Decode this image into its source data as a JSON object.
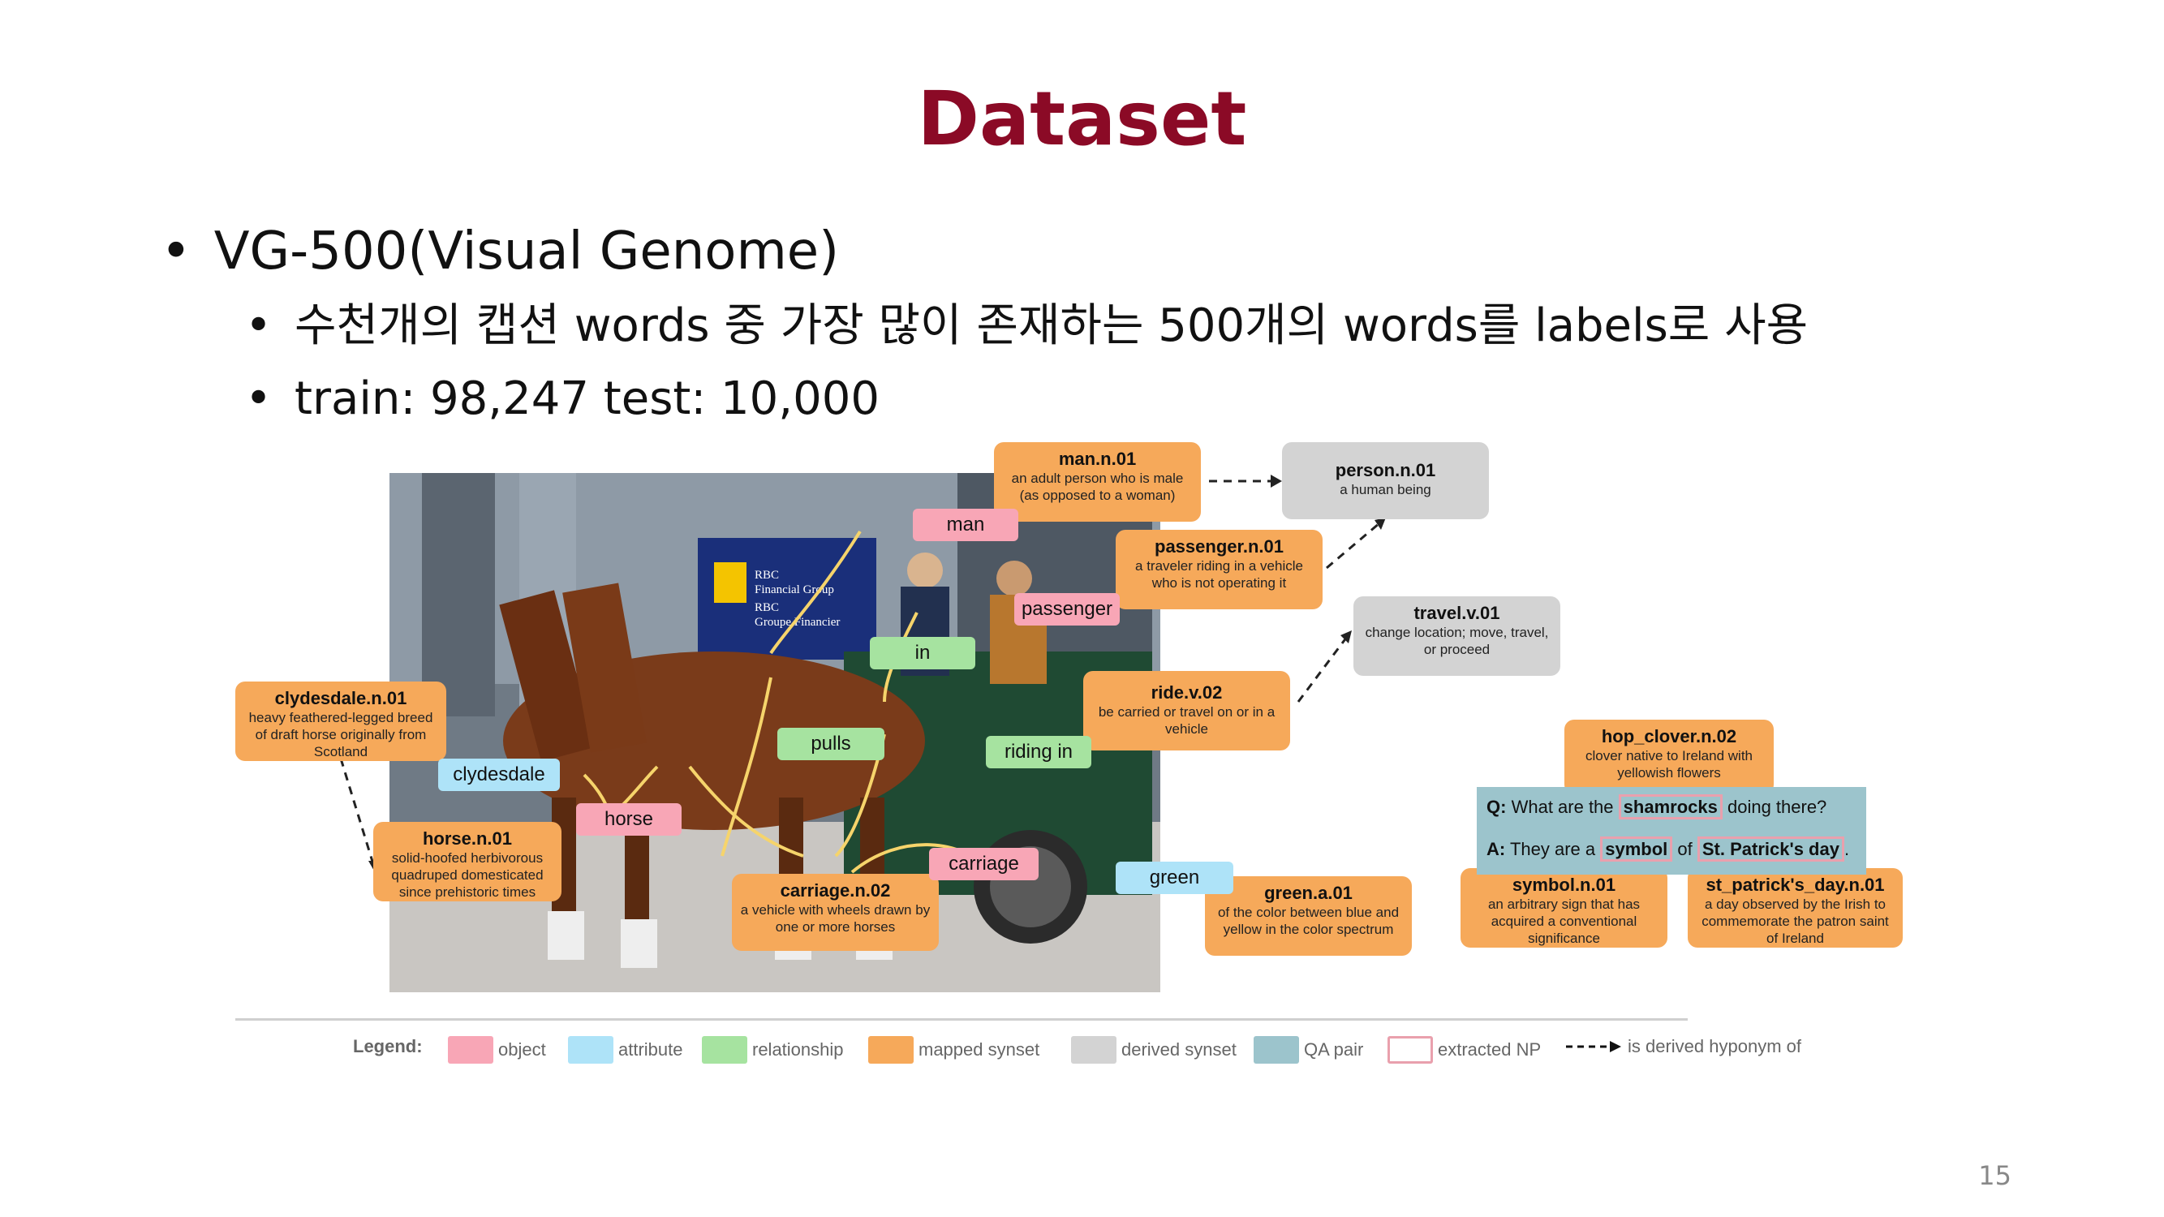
{
  "slide": {
    "title": "Dataset",
    "page_number": "15",
    "bullets": [
      {
        "marker": "•",
        "text": "VG-500(Visual Genome)"
      },
      {
        "marker": "•",
        "text": "수천개의 캡션 words 중 가장 많이 존재하는 500개의 words를 labels로 사용"
      },
      {
        "marker": "•",
        "text": "train: 98,247 test: 10,000"
      }
    ]
  },
  "figure": {
    "photo_sign": {
      "line1": "RBC",
      "line2": "Financial Group",
      "line3": "RBC",
      "line4": "Groupe Financier"
    },
    "objects": [
      "man",
      "passenger",
      "horse",
      "carriage"
    ],
    "attributes": [
      "clydesdale",
      "green"
    ],
    "relationships": [
      "in",
      "pulls",
      "riding in"
    ],
    "mapped_synsets": [
      {
        "name": "man.n.01",
        "desc": "an adult person who is male (as opposed to a woman)"
      },
      {
        "name": "passenger.n.01",
        "desc": "a traveler riding in a vehicle who is not operating it"
      },
      {
        "name": "ride.v.02",
        "desc": "be carried or travel on or in a vehicle"
      },
      {
        "name": "clydesdale.n.01",
        "desc": "heavy feathered-legged breed of draft horse originally from Scotland"
      },
      {
        "name": "horse.n.01",
        "desc": "solid-hoofed herbivorous quadruped domesticated since prehistoric times"
      },
      {
        "name": "carriage.n.02",
        "desc": "a vehicle with wheels drawn by one or more horses"
      },
      {
        "name": "green.a.01",
        "desc": "of the color between blue and yellow in the color spectrum"
      },
      {
        "name": "hop_clover.n.02",
        "desc": "clover native to Ireland with yellowish flowers"
      },
      {
        "name": "symbol.n.01",
        "desc": "an arbitrary sign that has acquired a conventional significance"
      },
      {
        "name": "st_patrick's_day.n.01",
        "desc": "a day observed by the Irish to commemorate the patron saint of Ireland"
      }
    ],
    "derived_synsets": [
      {
        "name": "person.n.01",
        "desc": "a human being"
      },
      {
        "name": "travel.v.01",
        "desc": "change location; move, travel, or proceed"
      }
    ],
    "qa": {
      "q_label": "Q:",
      "q_pre": "What are the",
      "q_np": "shamrocks",
      "q_post": "doing there?",
      "a_label": "A:",
      "a_pre": "They are a",
      "a_np1": "symbol",
      "a_mid": "of",
      "a_np2": "St. Patrick's day",
      "a_post": "."
    },
    "legend": {
      "title": "Legend:",
      "items": [
        {
          "label": "object",
          "color": "#f8a6b6"
        },
        {
          "label": "attribute",
          "color": "#aee3f8"
        },
        {
          "label": "relationship",
          "color": "#a6e3a0"
        },
        {
          "label": "mapped synset",
          "color": "#f6a95a"
        },
        {
          "label": "derived synset",
          "color": "#d3d3d3"
        },
        {
          "label": "QA pair",
          "color": "#9cc4cc"
        },
        {
          "label": "extracted NP",
          "color": "#e9a0ad"
        },
        {
          "label": "is derived hyponym of",
          "color": "#111111"
        }
      ]
    }
  },
  "colors": {
    "title": "#8b0a26",
    "text": "#111111"
  }
}
